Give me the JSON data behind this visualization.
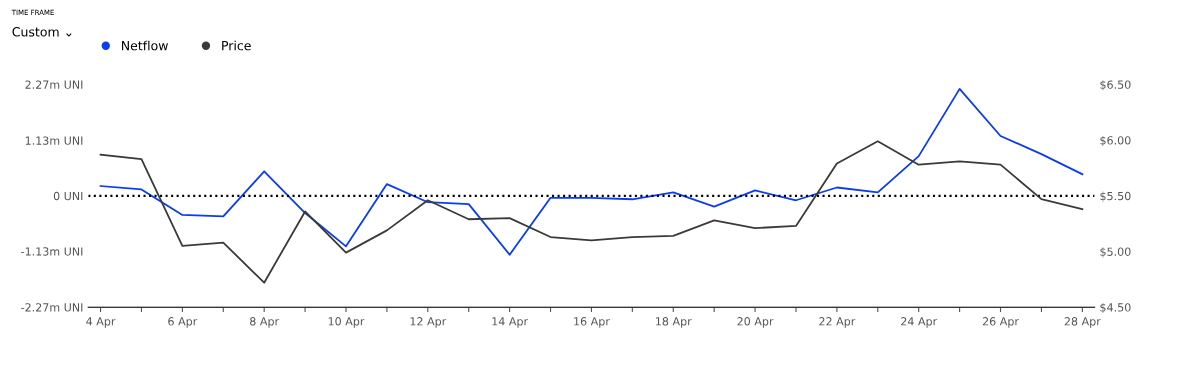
{
  "chart_data": {
    "type": "line",
    "categories": [
      "4 Apr",
      null,
      "6 Apr",
      null,
      "8 Apr",
      null,
      "10 Apr",
      null,
      "12 Apr",
      null,
      "14 Apr",
      null,
      "16 Apr",
      null,
      "18 Apr",
      null,
      "20 Apr",
      null,
      "22 Apr",
      null,
      "24 Apr",
      null,
      "26 Apr",
      null,
      "28 Apr"
    ],
    "series": [
      {
        "name": "Netflow",
        "color": "#0a3cf5",
        "axis": "y",
        "values": [
          0.2,
          0.13,
          -0.39,
          -0.42,
          0.5,
          -0.35,
          -1.03,
          0.24,
          -0.13,
          -0.17,
          -1.2,
          -0.04,
          -0.04,
          -0.07,
          0.07,
          -0.22,
          0.11,
          -0.09,
          0.17,
          0.07,
          0.81,
          2.18,
          1.22,
          0.85,
          0.44
        ]
      },
      {
        "name": "Price",
        "color": "#3a3a3a",
        "axis": "y2",
        "values": [
          5.87,
          5.83,
          5.05,
          5.08,
          4.72,
          5.36,
          4.99,
          5.19,
          5.46,
          5.29,
          5.3,
          5.13,
          5.1,
          5.13,
          5.14,
          5.28,
          5.21,
          5.23,
          5.79,
          5.99,
          5.78,
          5.81,
          5.78,
          5.47,
          5.38
        ]
      }
    ],
    "ylim": [
      -2.27,
      2.27
    ],
    "yticks": [
      {
        "value": -2.27,
        "label": "-2.27m UNI"
      },
      {
        "value": -1.13,
        "label": "-1.13m UNI"
      },
      {
        "value": 0,
        "label": "0 UNI"
      },
      {
        "value": 1.13,
        "label": "1.13m UNI"
      },
      {
        "value": 2.27,
        "label": "2.27m UNI"
      }
    ],
    "y2lim": [
      4.5,
      6.5
    ],
    "y2ticks": [
      {
        "value": 4.5,
        "label": "$4.50"
      },
      {
        "value": 5.0,
        "label": "$5.00"
      },
      {
        "value": 5.5,
        "label": "$5.50"
      },
      {
        "value": 6.0,
        "label": "$6.00"
      },
      {
        "value": 6.5,
        "label": "$6.50"
      }
    ],
    "ref_lines": [
      {
        "axis": "y",
        "value": 0,
        "label": null,
        "color": "#000000",
        "line_style": "dotted"
      }
    ],
    "annotations": [
      "TIME FRAME",
      "Custom ⌄"
    ],
    "legend": "top left",
    "grid": false,
    "marker": "none",
    "line_style": "solid"
  }
}
